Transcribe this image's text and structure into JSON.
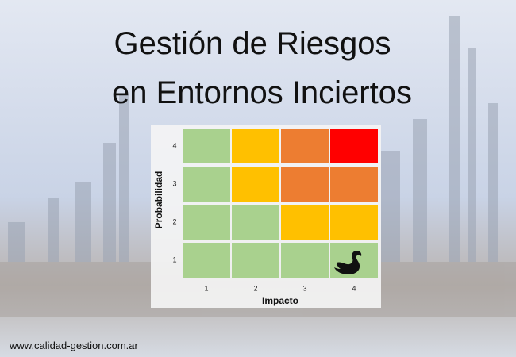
{
  "title": [
    "Gestión de Riesgos",
    "en Entornos Inciertos"
  ],
  "matrix": {
    "y_label": "Probabilidad",
    "x_label": "Impacto",
    "x_ticks": [
      1,
      2,
      3,
      4
    ],
    "y_ticks": [
      4,
      3,
      2,
      1
    ],
    "cells": [
      [
        "#a9d18e",
        "#ffc000",
        "#ed7d31",
        "#ff0000"
      ],
      [
        "#a9d18e",
        "#ffc000",
        "#ed7d31",
        "#ed7d31"
      ],
      [
        "#a9d18e",
        "#a9d18e",
        "#ffc000",
        "#ffc000"
      ],
      [
        "#a9d18e",
        "#a9d18e",
        "#a9d18e",
        "#a9d18e"
      ]
    ]
  },
  "footer": "www.calidad-gestion.com.ar"
}
